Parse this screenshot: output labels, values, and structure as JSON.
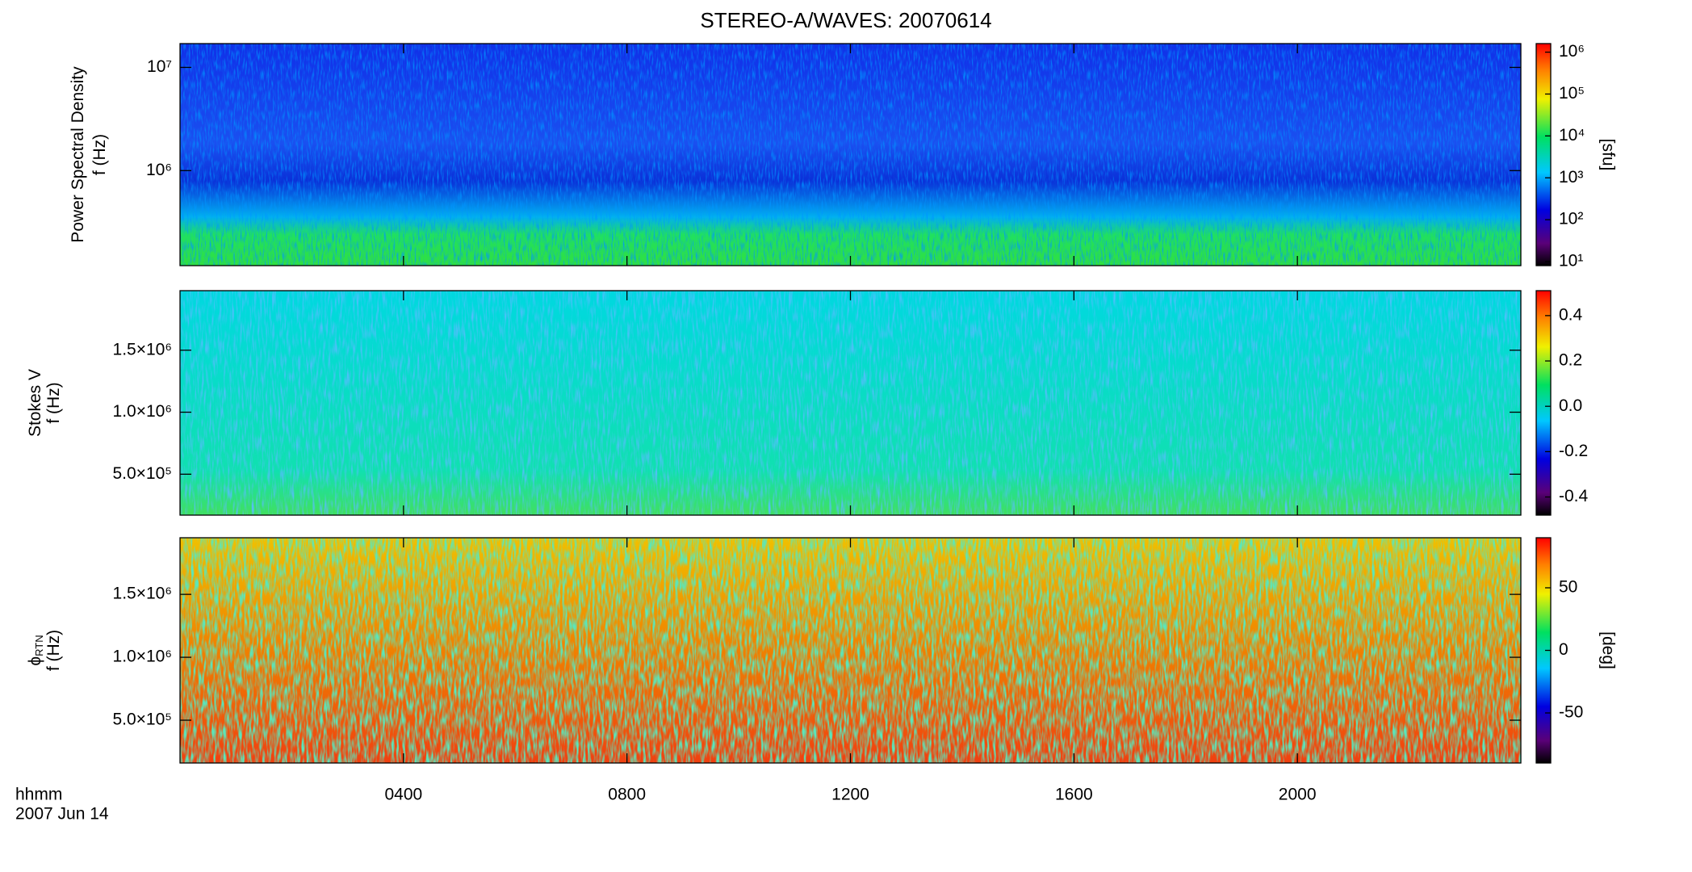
{
  "chart_data": [
    {
      "type": "heatmap",
      "title": "STEREO-A/WAVES: 20070614",
      "ylabel": [
        "Power Spectral Density",
        "f (Hz)"
      ],
      "ylim": [
        120000,
        17000000
      ],
      "log_scale": true,
      "yticks": [
        {
          "value": 1000000,
          "label": "10⁶"
        },
        {
          "value": 10000000,
          "label": "10⁷"
        }
      ],
      "colorbar": {
        "lim": [
          8,
          1600000
        ],
        "log_scale": true,
        "label": "[sfu]",
        "ticks": [
          {
            "value": 10,
            "label": "10¹"
          },
          {
            "value": 100,
            "label": "10²"
          },
          {
            "value": 1000,
            "label": "10³"
          },
          {
            "value": 10000,
            "label": "10⁴"
          },
          {
            "value": 100000,
            "label": "10⁵"
          },
          {
            "value": 1000000,
            "label": "10⁶"
          }
        ]
      }
    },
    {
      "type": "heatmap",
      "ylabel": [
        "Stokes V",
        "f (Hz)"
      ],
      "ylim": [
        170000,
        1980000
      ],
      "yticks": [
        {
          "value": 500000,
          "label": "5.0×10⁵"
        },
        {
          "value": 1000000,
          "label": "1.0×10⁶"
        },
        {
          "value": 1500000,
          "label": "1.5×10⁶"
        }
      ],
      "colorbar": {
        "lim": [
          -0.48,
          0.51
        ],
        "ticks": [
          0.4,
          0.2,
          {
            "value": 0,
            "label": "0.0"
          },
          -0.2,
          -0.4
        ]
      }
    },
    {
      "type": "heatmap",
      "ylabel": [
        "ϕ",
        "f (Hz)"
      ],
      "ylabel_subscript": "RTN",
      "ylim": [
        160000,
        1950000
      ],
      "yticks": [
        {
          "value": 500000,
          "label": "5.0×10⁵"
        },
        {
          "value": 1000000,
          "label": "1.0×10⁶"
        },
        {
          "value": 1500000,
          "label": "1.5×10⁶"
        }
      ],
      "colorbar": {
        "lim": [
          -90,
          90
        ],
        "label": "[deg]",
        "ticks": [
          50,
          0,
          -50
        ]
      },
      "xlim": [
        0,
        24
      ],
      "xticks": [
        {
          "value": 4,
          "label": "0400"
        },
        {
          "value": 8,
          "label": "0800"
        },
        {
          "value": 12,
          "label": "1200"
        },
        {
          "value": 16,
          "label": "1600"
        },
        {
          "value": 20,
          "label": "2000"
        }
      ],
      "xlabel": [
        "hhmm",
        "2007 Jun 14"
      ]
    }
  ]
}
